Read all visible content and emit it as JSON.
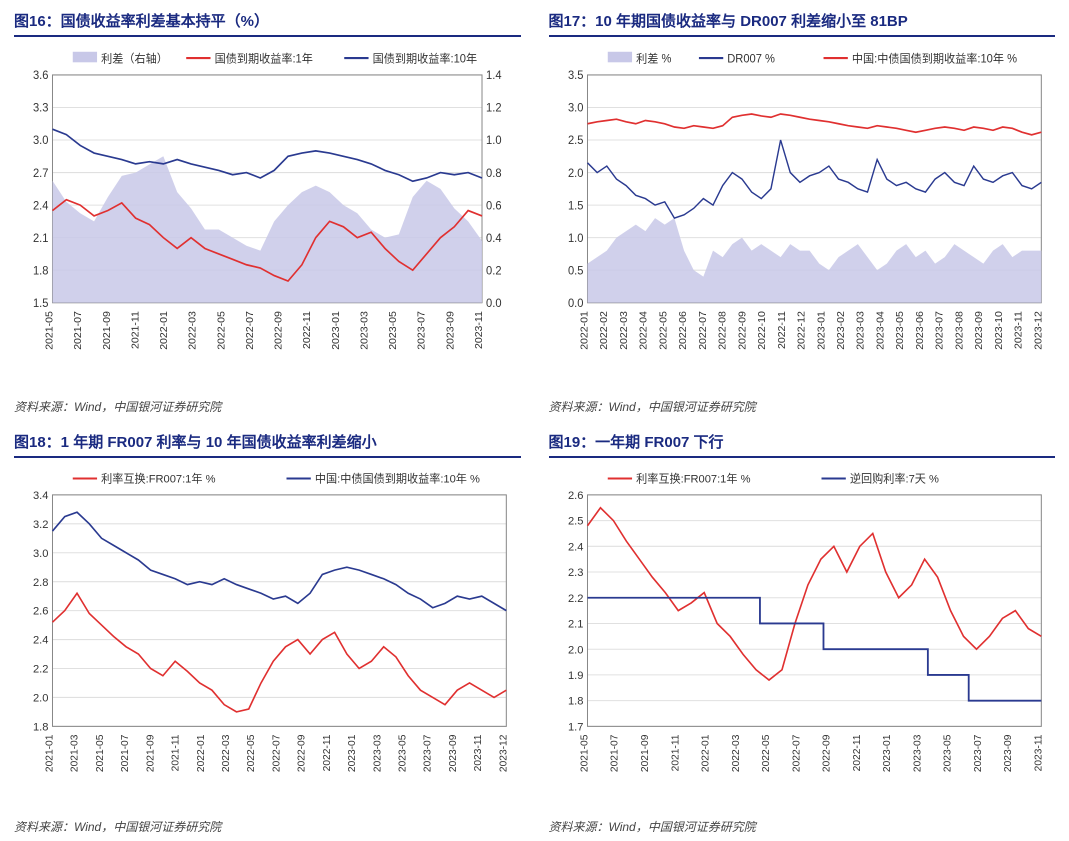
{
  "source": "资料来源：Wind，中国银河证券研究院",
  "colors": {
    "red": "#e03030",
    "navy": "#2a3a90",
    "area": "#c8c8e8",
    "grid": "#e0e0e0",
    "axis": "#888",
    "title": "#1a2a80"
  },
  "charts": [
    {
      "title": "图16：国债收益率利差基本持平（%）",
      "type": "line+area+dualaxis",
      "legend": [
        {
          "label": "利差（右轴）",
          "kind": "area",
          "color": "#c8c8e8"
        },
        {
          "label": "国债到期收益率:1年",
          "kind": "line",
          "color": "#e03030"
        },
        {
          "label": "国债到期收益率:10年",
          "kind": "line",
          "color": "#2a3a90"
        }
      ],
      "y1": {
        "lim": [
          1.5,
          3.6
        ],
        "ticks": [
          1.5,
          1.8,
          2.1,
          2.4,
          2.7,
          3.0,
          3.3,
          3.6
        ]
      },
      "y2": {
        "lim": [
          0.0,
          1.4
        ],
        "ticks": [
          0.0,
          0.2,
          0.4,
          0.6,
          0.8,
          1.0,
          1.2,
          1.4
        ]
      },
      "xcats": [
        "2021-05",
        "2021-07",
        "2021-09",
        "2021-11",
        "2022-01",
        "2022-03",
        "2022-05",
        "2022-07",
        "2022-09",
        "2022-11",
        "2023-01",
        "2023-03",
        "2023-05",
        "2023-07",
        "2023-09",
        "2023-11"
      ],
      "series": {
        "spread_r": [
          0.75,
          0.62,
          0.55,
          0.5,
          0.65,
          0.78,
          0.8,
          0.85,
          0.9,
          0.68,
          0.58,
          0.45,
          0.45,
          0.4,
          0.35,
          0.32,
          0.5,
          0.6,
          0.68,
          0.72,
          0.68,
          0.6,
          0.55,
          0.45,
          0.4,
          0.42,
          0.65,
          0.75,
          0.7,
          0.58,
          0.5,
          0.38
        ],
        "y1_red": [
          2.35,
          2.45,
          2.4,
          2.3,
          2.35,
          2.42,
          2.28,
          2.22,
          2.1,
          2.0,
          2.1,
          2.0,
          1.95,
          1.9,
          1.85,
          1.82,
          1.75,
          1.7,
          1.85,
          2.1,
          2.25,
          2.2,
          2.1,
          2.15,
          2.0,
          1.88,
          1.8,
          1.95,
          2.1,
          2.2,
          2.35,
          2.3
        ],
        "y10_navy": [
          3.1,
          3.05,
          2.95,
          2.88,
          2.85,
          2.82,
          2.78,
          2.8,
          2.78,
          2.82,
          2.78,
          2.75,
          2.72,
          2.68,
          2.7,
          2.65,
          2.72,
          2.85,
          2.88,
          2.9,
          2.88,
          2.85,
          2.82,
          2.78,
          2.72,
          2.68,
          2.62,
          2.65,
          2.7,
          2.68,
          2.7,
          2.65
        ]
      }
    },
    {
      "title": "图17：10 年期国债收益率与 DR007 利差缩小至 81BP",
      "type": "line+area",
      "legend": [
        {
          "label": "利差 %",
          "kind": "area",
          "color": "#c8c8e8"
        },
        {
          "label": "DR007 %",
          "kind": "line",
          "color": "#2a3a90"
        },
        {
          "label": "中国:中债国债到期收益率:10年 %",
          "kind": "line",
          "color": "#e03030"
        }
      ],
      "y1": {
        "lim": [
          0.0,
          3.5
        ],
        "ticks": [
          0.0,
          0.5,
          1.0,
          1.5,
          2.0,
          2.5,
          3.0,
          3.5
        ]
      },
      "xcats": [
        "2022-01",
        "2022-02",
        "2022-03",
        "2022-04",
        "2022-05",
        "2022-06",
        "2022-07",
        "2022-08",
        "2022-09",
        "2022-10",
        "2022-11",
        "2022-12",
        "2023-01",
        "2023-02",
        "2023-03",
        "2023-04",
        "2023-05",
        "2023-06",
        "2023-07",
        "2023-08",
        "2023-09",
        "2023-10",
        "2023-11",
        "2023-12"
      ],
      "series": {
        "spread": [
          0.6,
          0.7,
          0.8,
          1.0,
          1.1,
          1.2,
          1.1,
          1.3,
          1.2,
          1.3,
          0.8,
          0.5,
          0.4,
          0.8,
          0.7,
          0.9,
          1.0,
          0.8,
          0.9,
          0.8,
          0.7,
          0.9,
          0.8,
          0.8,
          0.6,
          0.5,
          0.7,
          0.8,
          0.9,
          0.7,
          0.5,
          0.6,
          0.8,
          0.9,
          0.7,
          0.8,
          0.6,
          0.7,
          0.9,
          0.8,
          0.7,
          0.6,
          0.8,
          0.9,
          0.7,
          0.8,
          0.8,
          0.8
        ],
        "dr007": [
          2.15,
          2.0,
          2.1,
          1.9,
          1.8,
          1.65,
          1.6,
          1.5,
          1.55,
          1.3,
          1.35,
          1.45,
          1.6,
          1.5,
          1.8,
          2.0,
          1.9,
          1.7,
          1.6,
          1.75,
          2.5,
          2.0,
          1.85,
          1.95,
          2.0,
          2.1,
          1.9,
          1.85,
          1.75,
          1.7,
          2.2,
          1.9,
          1.8,
          1.85,
          1.75,
          1.7,
          1.9,
          2.0,
          1.85,
          1.8,
          2.1,
          1.9,
          1.85,
          1.95,
          2.0,
          1.8,
          1.75,
          1.85
        ],
        "y10": [
          2.75,
          2.78,
          2.8,
          2.82,
          2.78,
          2.75,
          2.8,
          2.78,
          2.75,
          2.7,
          2.68,
          2.72,
          2.7,
          2.68,
          2.72,
          2.85,
          2.88,
          2.9,
          2.87,
          2.85,
          2.9,
          2.88,
          2.85,
          2.82,
          2.8,
          2.78,
          2.75,
          2.72,
          2.7,
          2.68,
          2.72,
          2.7,
          2.68,
          2.65,
          2.62,
          2.65,
          2.68,
          2.7,
          2.68,
          2.65,
          2.7,
          2.68,
          2.65,
          2.7,
          2.68,
          2.62,
          2.58,
          2.62
        ]
      }
    },
    {
      "title": "图18：1 年期 FR007 利率与 10 年国债收益率利差缩小",
      "type": "line",
      "legend": [
        {
          "label": "利率互换:FR007:1年 %",
          "kind": "line",
          "color": "#e03030"
        },
        {
          "label": "中国:中债国债到期收益率:10年 %",
          "kind": "line",
          "color": "#2a3a90"
        }
      ],
      "y1": {
        "lim": [
          1.8,
          3.4
        ],
        "ticks": [
          1.8,
          2.0,
          2.2,
          2.4,
          2.6,
          2.8,
          3.0,
          3.2,
          3.4
        ]
      },
      "xcats": [
        "2021-01",
        "2021-03",
        "2021-05",
        "2021-07",
        "2021-09",
        "2021-11",
        "2022-01",
        "2022-03",
        "2022-05",
        "2022-07",
        "2022-09",
        "2022-11",
        "2023-01",
        "2023-03",
        "2023-05",
        "2023-07",
        "2023-09",
        "2023-11",
        "2023-12"
      ],
      "series": {
        "fr007": [
          2.52,
          2.6,
          2.72,
          2.58,
          2.5,
          2.42,
          2.35,
          2.3,
          2.2,
          2.15,
          2.25,
          2.18,
          2.1,
          2.05,
          1.95,
          1.9,
          1.92,
          2.1,
          2.25,
          2.35,
          2.4,
          2.3,
          2.4,
          2.45,
          2.3,
          2.2,
          2.25,
          2.35,
          2.28,
          2.15,
          2.05,
          2.0,
          1.95,
          2.05,
          2.1,
          2.05,
          2.0,
          2.05
        ],
        "y10": [
          3.15,
          3.25,
          3.28,
          3.2,
          3.1,
          3.05,
          3.0,
          2.95,
          2.88,
          2.85,
          2.82,
          2.78,
          2.8,
          2.78,
          2.82,
          2.78,
          2.75,
          2.72,
          2.68,
          2.7,
          2.65,
          2.72,
          2.85,
          2.88,
          2.9,
          2.88,
          2.85,
          2.82,
          2.78,
          2.72,
          2.68,
          2.62,
          2.65,
          2.7,
          2.68,
          2.7,
          2.65,
          2.6
        ]
      }
    },
    {
      "title": "图19：一年期 FR007 下行",
      "type": "line+step",
      "legend": [
        {
          "label": "利率互换:FR007:1年 %",
          "kind": "line",
          "color": "#e03030"
        },
        {
          "label": "逆回购利率:7天 %",
          "kind": "line",
          "color": "#2a3a90"
        }
      ],
      "y1": {
        "lim": [
          1.7,
          2.6
        ],
        "ticks": [
          1.7,
          1.8,
          1.9,
          2.0,
          2.1,
          2.2,
          2.3,
          2.4,
          2.5,
          2.6
        ]
      },
      "xcats": [
        "2021-05",
        "2021-07",
        "2021-09",
        "2021-11",
        "2022-01",
        "2022-03",
        "2022-05",
        "2022-07",
        "2022-09",
        "2022-11",
        "2023-01",
        "2023-03",
        "2023-05",
        "2023-07",
        "2023-09",
        "2023-11"
      ],
      "series": {
        "fr007": [
          2.48,
          2.55,
          2.5,
          2.42,
          2.35,
          2.28,
          2.22,
          2.15,
          2.18,
          2.22,
          2.1,
          2.05,
          1.98,
          1.92,
          1.88,
          1.92,
          2.1,
          2.25,
          2.35,
          2.4,
          2.3,
          2.4,
          2.45,
          2.3,
          2.2,
          2.25,
          2.35,
          2.28,
          2.15,
          2.05,
          2.0,
          2.05,
          2.12,
          2.15,
          2.08,
          2.05
        ],
        "repo_steps": [
          [
            0,
            2.2
          ],
          [
            0.38,
            2.2
          ],
          [
            0.38,
            2.1
          ],
          [
            0.52,
            2.1
          ],
          [
            0.52,
            2.0
          ],
          [
            0.75,
            2.0
          ],
          [
            0.75,
            1.9
          ],
          [
            0.84,
            1.9
          ],
          [
            0.84,
            1.8
          ],
          [
            1.0,
            1.8
          ]
        ]
      }
    }
  ]
}
